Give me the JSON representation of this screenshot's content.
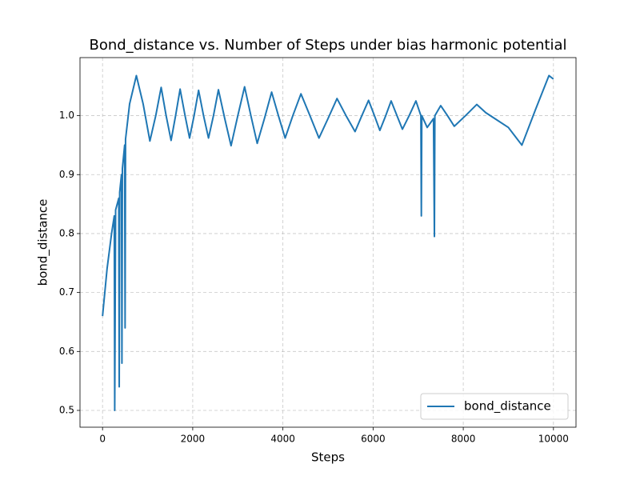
{
  "chart_data": {
    "type": "line",
    "title": "Bond_distance vs. Number of Steps under bias harmonic potential",
    "xlabel": "Steps",
    "ylabel": "bond_distance",
    "x": [
      0,
      100,
      200,
      260,
      270,
      290,
      360,
      370,
      380,
      420,
      430,
      440,
      490,
      500,
      510,
      600,
      750,
      900,
      1050,
      1180,
      1300,
      1410,
      1520,
      1620,
      1720,
      1830,
      1930,
      2030,
      2130,
      2240,
      2350,
      2460,
      2570,
      2710,
      2850,
      3000,
      3150,
      3290,
      3430,
      3590,
      3750,
      3900,
      4050,
      4220,
      4400,
      4600,
      4800,
      5000,
      5200,
      5400,
      5600,
      5750,
      5900,
      6030,
      6150,
      6280,
      6400,
      6530,
      6650,
      6800,
      6950,
      7060,
      7070,
      7080,
      7200,
      7340,
      7360,
      7370,
      7500,
      7650,
      7800,
      8050,
      8300,
      8500,
      8700,
      9000,
      9150,
      9300,
      9600,
      9900,
      10000
    ],
    "series": [
      {
        "name": "bond_distance",
        "color": "#1f77b4",
        "values": [
          0.66,
          0.74,
          0.8,
          0.83,
          0.5,
          0.84,
          0.86,
          0.54,
          0.87,
          0.9,
          0.58,
          0.91,
          0.95,
          0.64,
          0.96,
          1.02,
          1.068,
          1.02,
          0.957,
          1.0,
          1.048,
          1.0,
          0.958,
          1.0,
          1.045,
          1.0,
          0.962,
          1.0,
          1.043,
          1.0,
          0.962,
          1.0,
          1.044,
          0.995,
          0.949,
          1.0,
          1.049,
          1.0,
          0.953,
          0.995,
          1.04,
          1.0,
          0.962,
          1.0,
          1.037,
          1.0,
          0.962,
          0.995,
          1.029,
          1.0,
          0.973,
          1.0,
          1.026,
          1.0,
          0.975,
          1.0,
          1.025,
          1.0,
          0.977,
          1.0,
          1.025,
          1.0,
          0.83,
          1.0,
          0.98,
          0.995,
          0.795,
          1.0,
          1.017,
          1.0,
          0.982,
          1.0,
          1.019,
          1.005,
          0.995,
          0.98,
          0.965,
          0.95,
          1.01,
          1.068,
          1.062
        ]
      }
    ],
    "xlim": [
      -500,
      10500
    ],
    "ylim": [
      0.4715,
      1.0985
    ],
    "xticks": [
      0,
      2000,
      4000,
      6000,
      8000,
      10000
    ],
    "yticks": [
      0.5,
      0.6,
      0.7,
      0.8,
      0.9,
      {
        "value": 1.0,
        "label": "1.0"
      }
    ],
    "grid": true,
    "legend": "lower right"
  }
}
